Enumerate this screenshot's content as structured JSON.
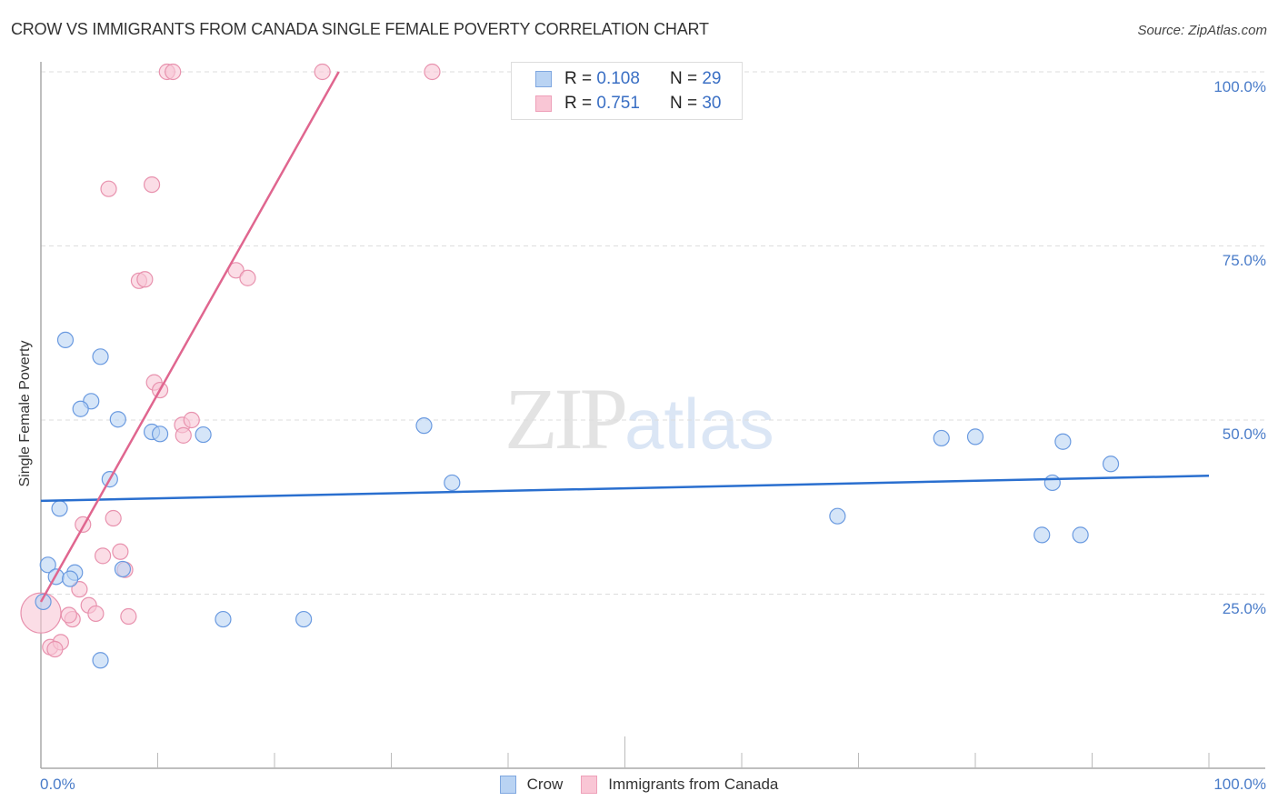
{
  "header": {
    "title": "CROW VS IMMIGRANTS FROM CANADA SINGLE FEMALE POVERTY CORRELATION CHART",
    "source": "Source: ZipAtlas.com"
  },
  "legend_box": {
    "rows": [
      {
        "r_label": "R =",
        "r_value": "0.108",
        "n_label": "N =",
        "n_value": "29",
        "color": "#a8c8f0"
      },
      {
        "r_label": "R =",
        "r_value": "0.751",
        "n_label": "N =",
        "n_value": "30",
        "color": "#f7b8cb"
      }
    ]
  },
  "axes": {
    "ylabel": "Single Female Poverty",
    "yticks": [
      "100.0%",
      "75.0%",
      "50.0%",
      "25.0%"
    ],
    "xticks": [
      "0.0%",
      "100.0%"
    ]
  },
  "bottom_legend": {
    "items": [
      {
        "label": "Crow",
        "color": "#a8c8f0"
      },
      {
        "label": "Immigrants from Canada",
        "color": "#f7b8cb"
      }
    ]
  },
  "watermark": {
    "zip": "ZIP",
    "atlas": "atlas"
  },
  "colors": {
    "blue_fill": "#b9d3f3",
    "blue_stroke": "#6a9ae0",
    "blue_line": "#2a6fcf",
    "pink_fill": "#f9c6d5",
    "pink_stroke": "#e892ae",
    "pink_line": "#e0668f",
    "tick_text": "#4a7cc9"
  },
  "chart_data": {
    "type": "scatter",
    "title": "CROW VS IMMIGRANTS FROM CANADA SINGLE FEMALE POVERTY CORRELATION CHART",
    "xlabel": "",
    "ylabel": "Single Female Poverty",
    "xlim": [
      0,
      100
    ],
    "ylim": [
      0,
      105
    ],
    "x_tick_labels": [
      "0.0%",
      "100.0%"
    ],
    "y_tick_labels": [
      "25.0%",
      "50.0%",
      "75.0%",
      "100.0%"
    ],
    "grid": "horizontal dashed",
    "legend_position": "top-center and bottom",
    "series": [
      {
        "name": "Crow",
        "R": 0.108,
        "N": 29,
        "points": [
          [
            2.1,
            61.5
          ],
          [
            5.1,
            59.1
          ],
          [
            4.3,
            52.7
          ],
          [
            3.4,
            51.6
          ],
          [
            6.6,
            50.1
          ],
          [
            9.5,
            48.3
          ],
          [
            10.2,
            48.0
          ],
          [
            13.9,
            47.9
          ],
          [
            5.9,
            41.5
          ],
          [
            1.6,
            37.3
          ],
          [
            0.6,
            29.2
          ],
          [
            1.3,
            27.5
          ],
          [
            2.9,
            28.1
          ],
          [
            2.5,
            27.2
          ],
          [
            7.0,
            28.6
          ],
          [
            0.2,
            23.9
          ],
          [
            5.1,
            15.5
          ],
          [
            15.6,
            21.4
          ],
          [
            22.5,
            21.4
          ],
          [
            32.8,
            49.2
          ],
          [
            35.2,
            41.0
          ],
          [
            68.2,
            36.2
          ],
          [
            77.1,
            47.4
          ],
          [
            80.0,
            47.6
          ],
          [
            87.5,
            46.9
          ],
          [
            86.6,
            41.0
          ],
          [
            91.6,
            43.7
          ],
          [
            85.7,
            33.5
          ],
          [
            89.0,
            33.5
          ]
        ],
        "trend": {
          "x": [
            0,
            100
          ],
          "y": [
            38.4,
            42.0
          ]
        }
      },
      {
        "name": "Immigrants from Canada",
        "R": 0.751,
        "N": 30,
        "points": [
          [
            10.8,
            100
          ],
          [
            11.3,
            100
          ],
          [
            24.1,
            100
          ],
          [
            33.5,
            100
          ],
          [
            5.8,
            83.2
          ],
          [
            9.5,
            83.8
          ],
          [
            8.4,
            70.0
          ],
          [
            8.9,
            70.2
          ],
          [
            16.7,
            71.5
          ],
          [
            17.7,
            70.4
          ],
          [
            9.7,
            55.4
          ],
          [
            10.2,
            54.3
          ],
          [
            12.1,
            49.3
          ],
          [
            12.9,
            50.0
          ],
          [
            12.2,
            47.8
          ],
          [
            3.6,
            35.0
          ],
          [
            6.2,
            35.9
          ],
          [
            5.3,
            30.5
          ],
          [
            6.8,
            31.1
          ],
          [
            7.2,
            28.5
          ],
          [
            3.3,
            25.7
          ],
          [
            4.1,
            23.4
          ],
          [
            2.7,
            21.4
          ],
          [
            4.7,
            22.2
          ],
          [
            7.5,
            21.8
          ],
          [
            0.0,
            22.3
          ],
          [
            0.8,
            17.4
          ],
          [
            1.7,
            18.1
          ],
          [
            1.2,
            17.1
          ],
          [
            2.4,
            22.0
          ]
        ],
        "trend": {
          "x": [
            0,
            25.5
          ],
          "y": [
            23.9,
            100
          ]
        }
      }
    ]
  }
}
